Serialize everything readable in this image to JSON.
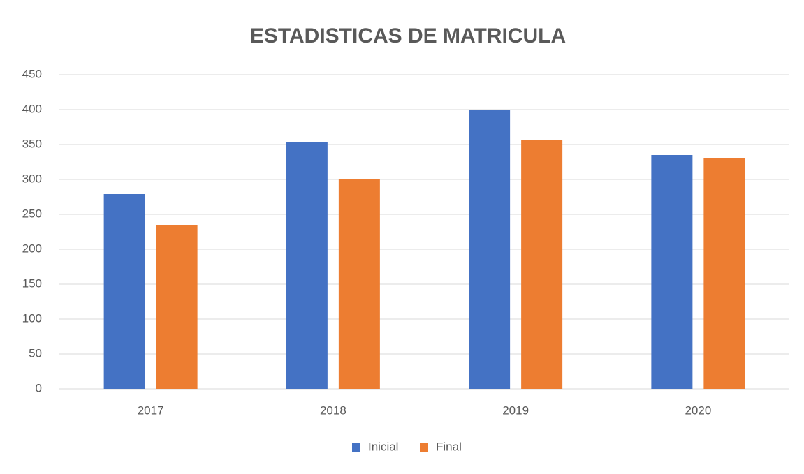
{
  "chart_data": {
    "type": "bar",
    "title": "ESTADISTICAS DE MATRICULA",
    "categories": [
      "2017",
      "2018",
      "2019",
      "2020"
    ],
    "series": [
      {
        "name": "Inicial",
        "color": "#4472c4",
        "values": [
          279,
          353,
          400,
          335
        ]
      },
      {
        "name": "Final",
        "color": "#ed7d31",
        "values": [
          234,
          301,
          357,
          330
        ]
      }
    ],
    "ylim": [
      0,
      450
    ],
    "yticks": [
      0,
      50,
      100,
      150,
      200,
      250,
      300,
      350,
      400,
      450
    ],
    "grid": true,
    "legend": "bottom"
  }
}
